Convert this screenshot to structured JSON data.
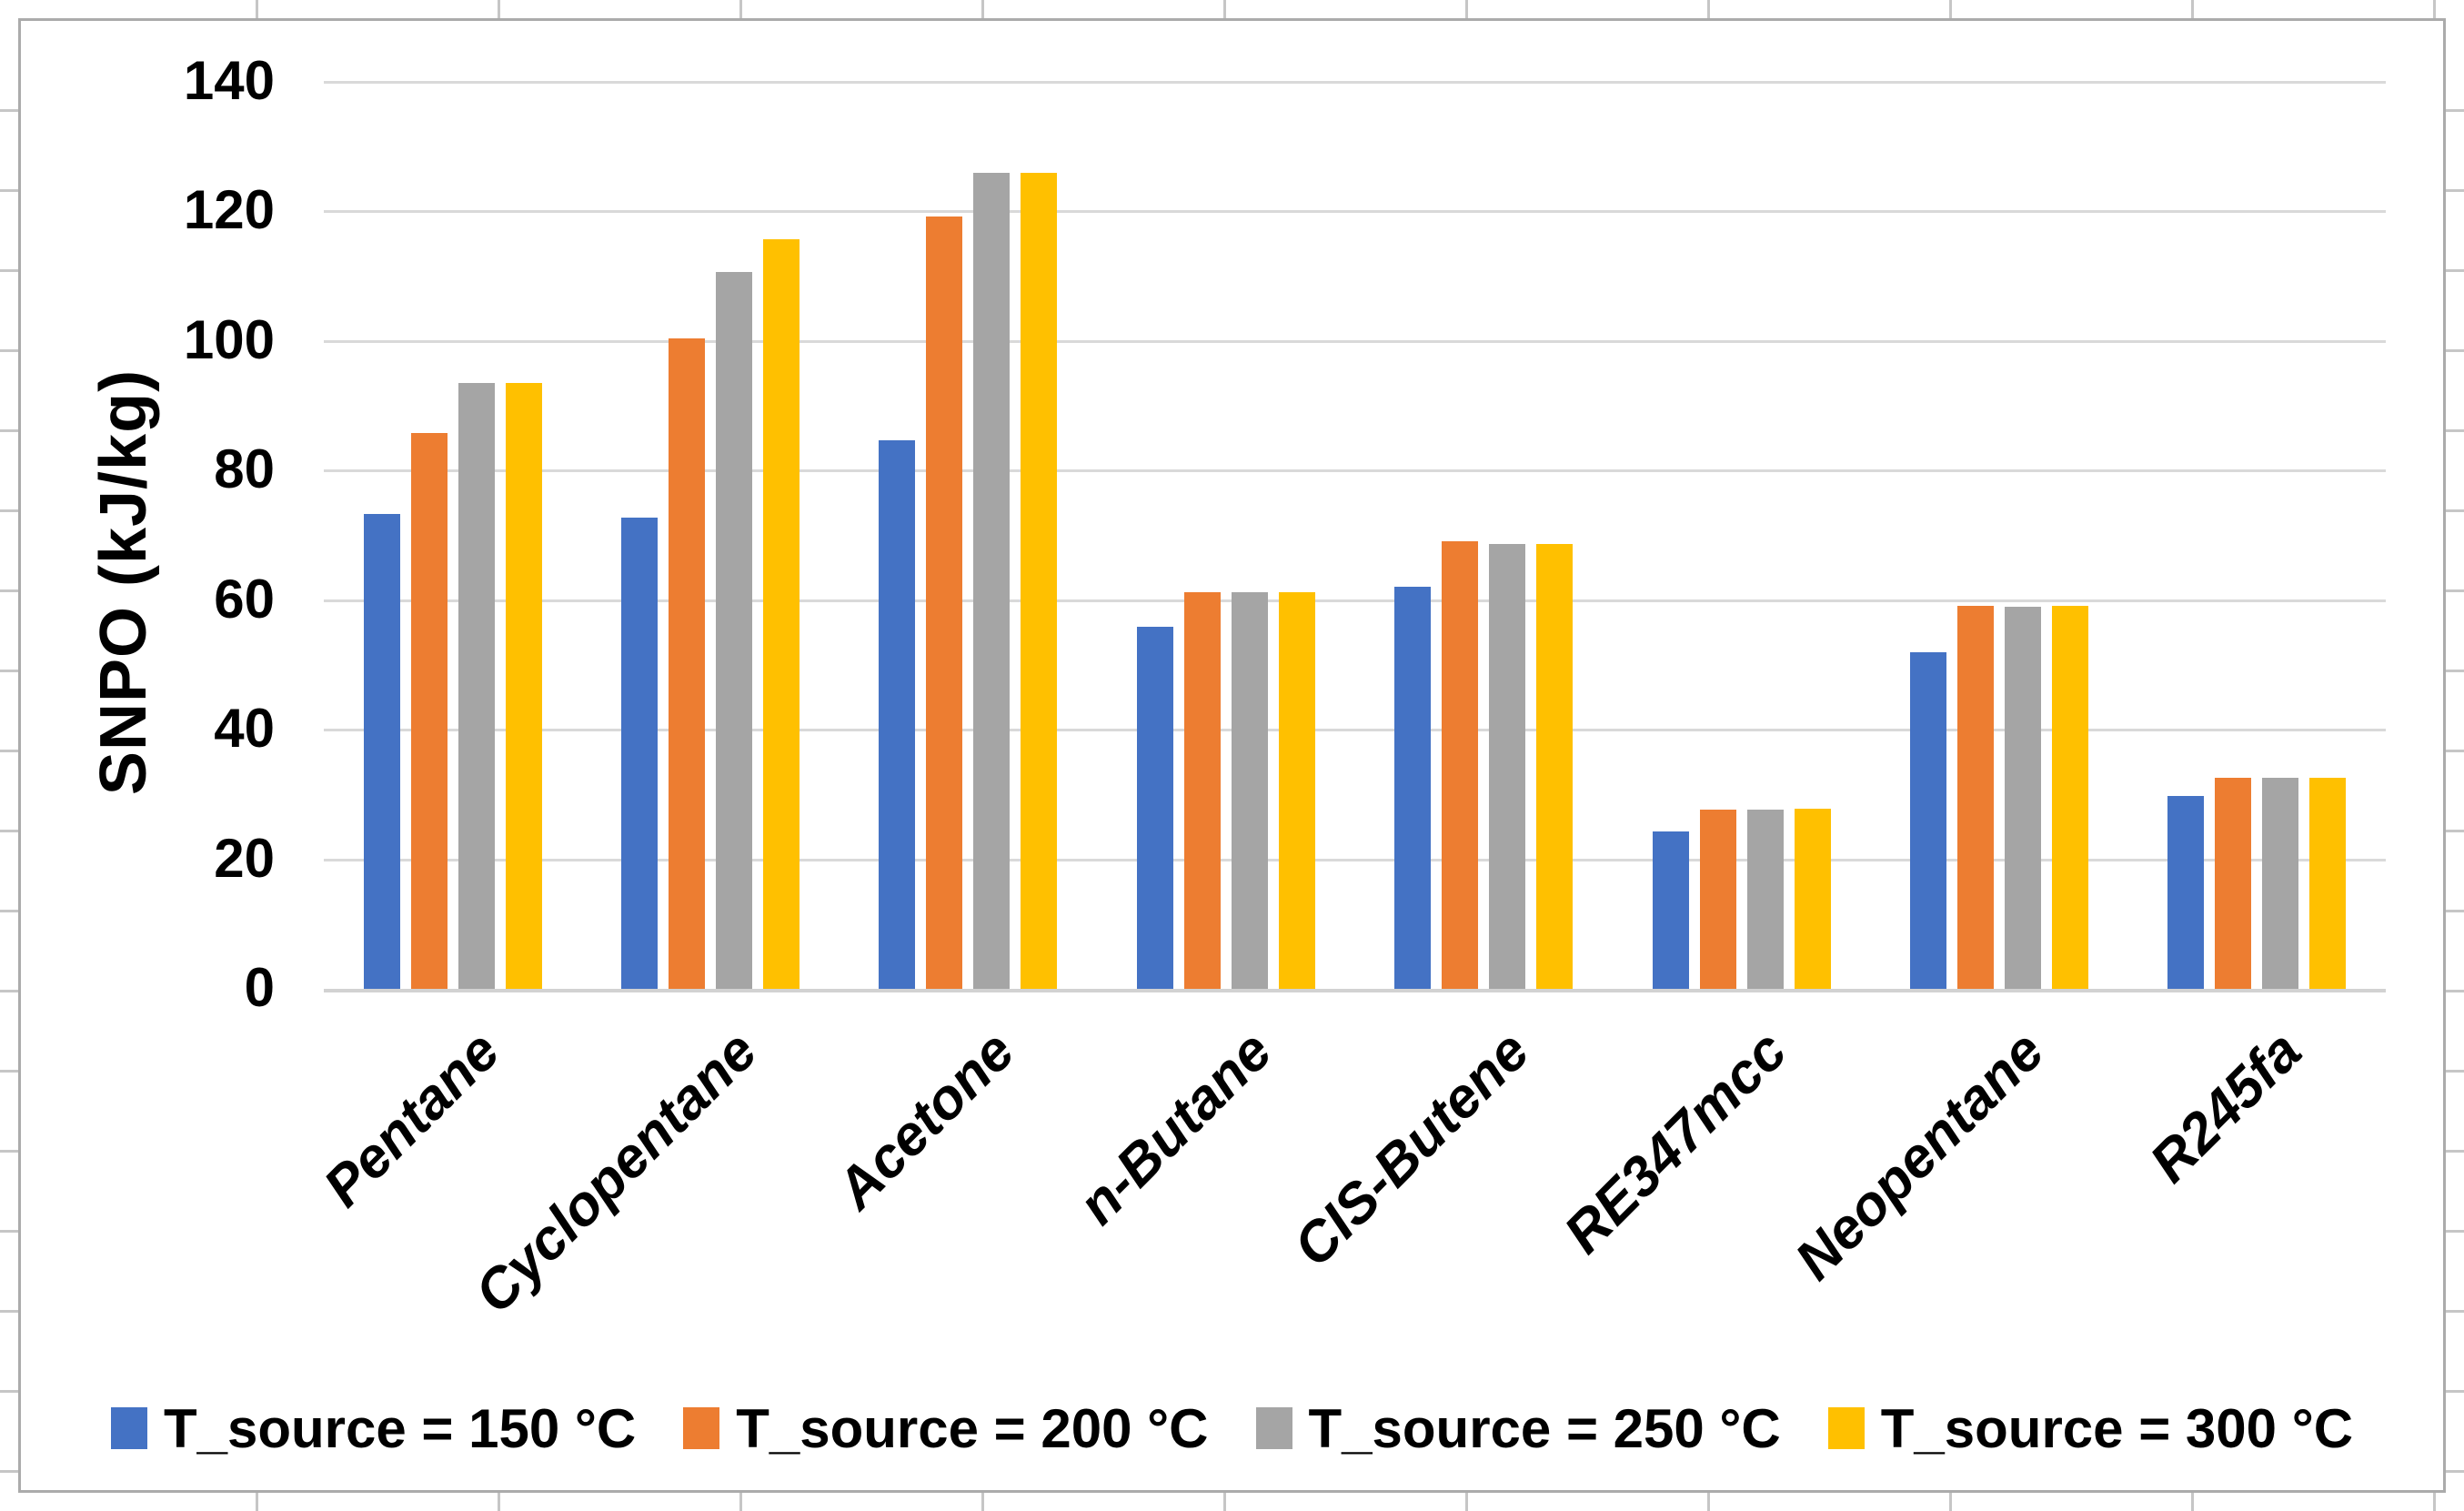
{
  "chart_data": {
    "type": "bar",
    "title": "",
    "xlabel": "",
    "ylabel": "SNPO (kJ/kg)",
    "ylim": [
      0,
      140
    ],
    "ytick_step": 20,
    "yticks": [
      "140",
      "120",
      "100",
      "80",
      "60",
      "40",
      "20",
      "0"
    ],
    "grid": true,
    "gridline_color": "#d9d9d9",
    "legend_position": "bottom",
    "categories": [
      "Pentane",
      "Cyclopentane",
      "Acetone",
      "n-Butane",
      "CIS-Butene",
      "RE347mcc",
      "Neopentane",
      "R245fa"
    ],
    "series": [
      {
        "name": "T_source = 150 °C",
        "color": "#4472C4",
        "values": [
          73.3,
          72.7,
          84.7,
          55.8,
          62.1,
          24.3,
          52.0,
          29.7
        ]
      },
      {
        "name": "T_source = 200 °C",
        "color": "#ED7D31",
        "values": [
          85.8,
          100.3,
          119.2,
          61.2,
          69.1,
          27.7,
          59.1,
          32.5
        ]
      },
      {
        "name": "T_source = 250 °C",
        "color": "#A5A5A5",
        "values": [
          93.5,
          110.6,
          125.9,
          61.2,
          68.6,
          27.7,
          59.0,
          32.5
        ]
      },
      {
        "name": "T_source = 300 °C",
        "color": "#FFC000",
        "values": [
          93.5,
          115.6,
          125.9,
          61.2,
          68.7,
          27.8,
          59.1,
          32.5
        ]
      }
    ]
  }
}
